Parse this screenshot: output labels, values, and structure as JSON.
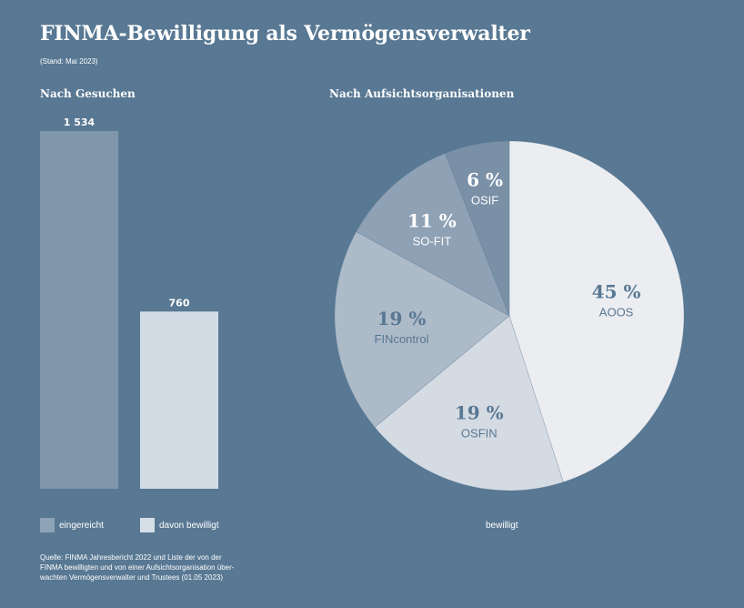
{
  "header": {
    "title": "FINMA-Bewilligung als Vermögensverwalter",
    "subtitle": "(Stand: Mai 2023)"
  },
  "sections": {
    "bars_title": "Nach Gesuchen",
    "pie_title": "Nach Aufsichtsorganisationen"
  },
  "legend": {
    "submitted": "eingereicht",
    "approved": "davon bewilligt",
    "pie": "bewilligt"
  },
  "source": {
    "line1": "Quelle: FINMA Jahresbericht 2022 und Liste der von der",
    "line2": "FINMA bewilligten und von einer Aufsichtsorganisation über-",
    "line3": "wachten Vermögensverwalter und Trustees (01.05 2023)"
  },
  "colors": {
    "background": "#587893",
    "bar_submitted": "#7f96ab",
    "bar_approved": "#d3dce5",
    "swatch_submitted": "#8ea3b7",
    "swatch_approved": "#d6dee6"
  },
  "chart_data": [
    {
      "type": "bar",
      "title": "Nach Gesuchen",
      "categories": [
        "eingereicht",
        "davon bewilligt"
      ],
      "values": [
        1534,
        760
      ],
      "labels": [
        "1 534",
        "760"
      ],
      "ylim": [
        0,
        1534
      ],
      "colors": [
        "#7f96ab",
        "#d3dce5"
      ]
    },
    {
      "type": "pie",
      "title": "Nach Aufsichtsorganisationen",
      "slices": [
        {
          "label": "AOOS",
          "value": 45,
          "display": "45 %",
          "color": "#ebedf1",
          "text_color": "#587893"
        },
        {
          "label": "OSFIN",
          "value": 19,
          "display": "19 %",
          "color": "#d5dbe3",
          "text_color": "#587893"
        },
        {
          "label": "FINcontrol",
          "value": 19,
          "display": "19 %",
          "color": "#adbac8",
          "text_color": "#587893"
        },
        {
          "label": "SO-FIT",
          "value": 11,
          "display": "11 %",
          "color": "#8fa1b5",
          "text_color": "#ffffff"
        },
        {
          "label": "OSIF",
          "value": 6,
          "display": "6 %",
          "color": "#7990a7",
          "text_color": "#ffffff"
        }
      ]
    }
  ]
}
